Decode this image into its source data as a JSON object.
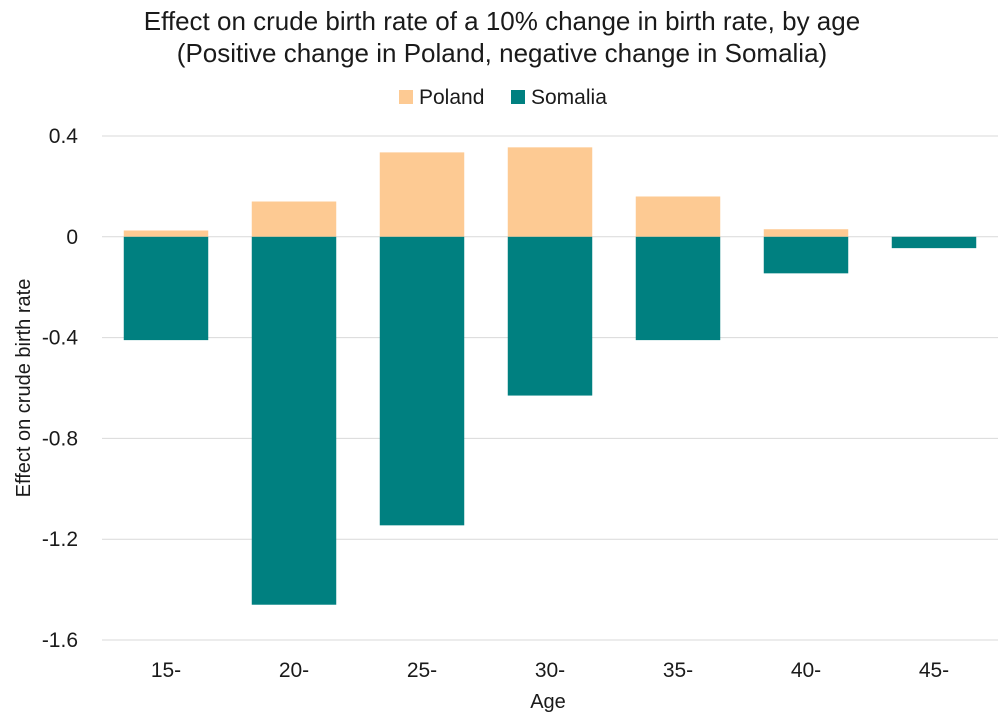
{
  "chart_data": {
    "type": "bar",
    "title": [
      "Effect on crude birth rate of a 10% change in birth rate, by age",
      "(Positive change in Poland, negative change in Somalia)"
    ],
    "xlabel": "Age",
    "ylabel": "Effect on crude birth rate",
    "categories": [
      "15-",
      "20-",
      "25-",
      "30-",
      "35-",
      "40-",
      "45-"
    ],
    "ylim": [
      -1.6,
      0.4
    ],
    "yticks": [
      0.4,
      0,
      -0.4,
      -0.8,
      -1.2,
      -1.6
    ],
    "ytick_labels": [
      "0.4",
      "0",
      "-0.4",
      "-0.8",
      "-1.2",
      "-1.6"
    ],
    "grid": true,
    "legend_position": "top-center",
    "series": [
      {
        "name": "Poland",
        "color": "#fdca93",
        "values": [
          0.025,
          0.14,
          0.335,
          0.355,
          0.16,
          0.03,
          0.0
        ]
      },
      {
        "name": "Somalia",
        "color": "#008080",
        "values": [
          -0.41,
          -1.46,
          -1.145,
          -0.63,
          -0.41,
          -0.145,
          -0.045
        ]
      }
    ]
  }
}
